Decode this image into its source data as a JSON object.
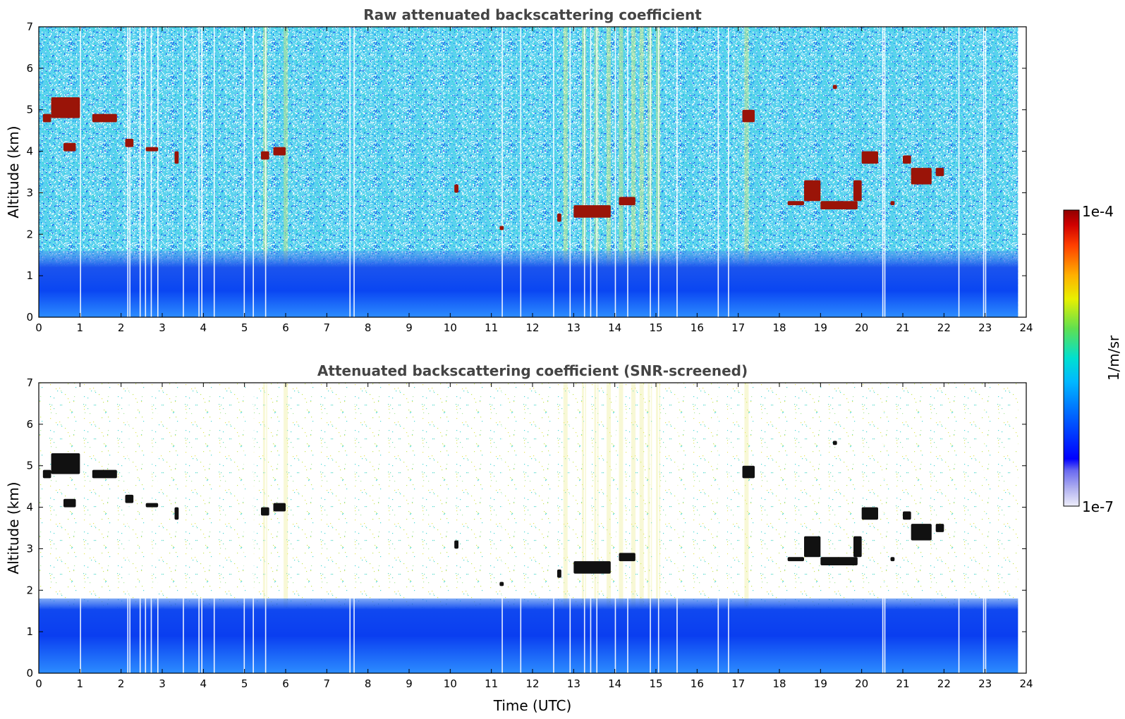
{
  "chart_data": [
    {
      "type": "heatmap",
      "title": "Raw attenuated backscattering coefficient",
      "xlabel": "",
      "ylabel": "Altitude (km)",
      "xlim": [
        0,
        24
      ],
      "ylim": [
        0,
        7
      ],
      "xticks": [
        "0",
        "1",
        "2",
        "3",
        "4",
        "5",
        "6",
        "7",
        "8",
        "9",
        "10",
        "11",
        "12",
        "13",
        "14",
        "15",
        "16",
        "17",
        "18",
        "19",
        "20",
        "21",
        "22",
        "23",
        "24"
      ],
      "yticks": [
        "0",
        "1",
        "2",
        "3",
        "4",
        "5",
        "6",
        "7"
      ],
      "data_end_time": 23.8,
      "features": [
        {
          "kind": "boundary_layer",
          "t0": 0,
          "t1": 23.8,
          "z0": 0,
          "z1": 1.6
        },
        {
          "kind": "cloud",
          "t0": 0.1,
          "t1": 0.3,
          "z0": 4.7,
          "z1": 4.9
        },
        {
          "kind": "cloud",
          "t0": 0.3,
          "t1": 1.0,
          "z0": 4.8,
          "z1": 5.3
        },
        {
          "kind": "cloud",
          "t0": 1.3,
          "t1": 1.9,
          "z0": 4.7,
          "z1": 4.9
        },
        {
          "kind": "cloud",
          "t0": 0.6,
          "t1": 0.9,
          "z0": 4.0,
          "z1": 4.2
        },
        {
          "kind": "cloud",
          "t0": 2.1,
          "t1": 2.3,
          "z0": 4.1,
          "z1": 4.3
        },
        {
          "kind": "cloud",
          "t0": 2.6,
          "t1": 2.9,
          "z0": 4.0,
          "z1": 4.1
        },
        {
          "kind": "cloud",
          "t0": 3.3,
          "t1": 3.4,
          "z0": 3.7,
          "z1": 4.0
        },
        {
          "kind": "cloud",
          "t0": 5.4,
          "t1": 5.6,
          "z0": 3.8,
          "z1": 4.0
        },
        {
          "kind": "cloud",
          "t0": 5.7,
          "t1": 6.0,
          "z0": 3.9,
          "z1": 4.1
        },
        {
          "kind": "cloud",
          "t0": 10.1,
          "t1": 10.2,
          "z0": 3.0,
          "z1": 3.2
        },
        {
          "kind": "cloud",
          "t0": 11.2,
          "t1": 11.3,
          "z0": 2.1,
          "z1": 2.2
        },
        {
          "kind": "cloud",
          "t0": 12.6,
          "t1": 12.7,
          "z0": 2.3,
          "z1": 2.5
        },
        {
          "kind": "cloud",
          "t0": 13.0,
          "t1": 13.9,
          "z0": 2.4,
          "z1": 2.7
        },
        {
          "kind": "cloud",
          "t0": 14.1,
          "t1": 14.5,
          "z0": 2.7,
          "z1": 2.9
        },
        {
          "kind": "cloud",
          "t0": 17.1,
          "t1": 17.4,
          "z0": 4.7,
          "z1": 5.0
        },
        {
          "kind": "cloud",
          "t0": 18.2,
          "t1": 18.6,
          "z0": 2.7,
          "z1": 2.8
        },
        {
          "kind": "cloud",
          "t0": 18.6,
          "t1": 19.0,
          "z0": 2.8,
          "z1": 3.3
        },
        {
          "kind": "cloud",
          "t0": 19.0,
          "t1": 19.9,
          "z0": 2.6,
          "z1": 2.8
        },
        {
          "kind": "cloud",
          "t0": 19.8,
          "t1": 20.0,
          "z0": 2.8,
          "z1": 3.3
        },
        {
          "kind": "cloud",
          "t0": 20.0,
          "t1": 20.4,
          "z0": 3.7,
          "z1": 4.0
        },
        {
          "kind": "cloud",
          "t0": 19.3,
          "t1": 19.4,
          "z0": 5.5,
          "z1": 5.6
        },
        {
          "kind": "cloud",
          "t0": 20.7,
          "t1": 20.8,
          "z0": 2.7,
          "z1": 2.8
        },
        {
          "kind": "cloud",
          "t0": 21.0,
          "t1": 21.2,
          "z0": 3.7,
          "z1": 3.9
        },
        {
          "kind": "cloud",
          "t0": 21.2,
          "t1": 21.7,
          "z0": 3.2,
          "z1": 3.6
        },
        {
          "kind": "cloud",
          "t0": 21.8,
          "t1": 22.0,
          "z0": 3.4,
          "z1": 3.6
        }
      ]
    },
    {
      "type": "heatmap",
      "title": "Attenuated backscattering coefficient (SNR-screened)",
      "xlabel": "Time (UTC)",
      "ylabel": "Altitude (km)",
      "xlim": [
        0,
        24
      ],
      "ylim": [
        0,
        7
      ],
      "xticks": [
        "0",
        "1",
        "2",
        "3",
        "4",
        "5",
        "6",
        "7",
        "8",
        "9",
        "10",
        "11",
        "12",
        "13",
        "14",
        "15",
        "16",
        "17",
        "18",
        "19",
        "20",
        "21",
        "22",
        "23",
        "24"
      ],
      "yticks": [
        "0",
        "1",
        "2",
        "3",
        "4",
        "5",
        "6",
        "7"
      ],
      "data_end_time": 23.8,
      "features": [
        {
          "kind": "boundary_layer",
          "t0": 0,
          "t1": 23.8,
          "z0": 0,
          "z1": 1.8
        }
      ]
    }
  ],
  "colorbar": {
    "label": "1/m/sr",
    "max_label": "1e-4",
    "min_label": "1e-7",
    "colormap": [
      "#e6e6f5",
      "#c8c8f0",
      "#a0a0f0",
      "#7878f0",
      "#0000ff",
      "#0040ff",
      "#0080ff",
      "#00c0ff",
      "#00e0e0",
      "#20e0a0",
      "#80e040",
      "#c0f000",
      "#ffff00",
      "#ffc000",
      "#ff8000",
      "#ff4000",
      "#e00000",
      "#a00000"
    ]
  }
}
